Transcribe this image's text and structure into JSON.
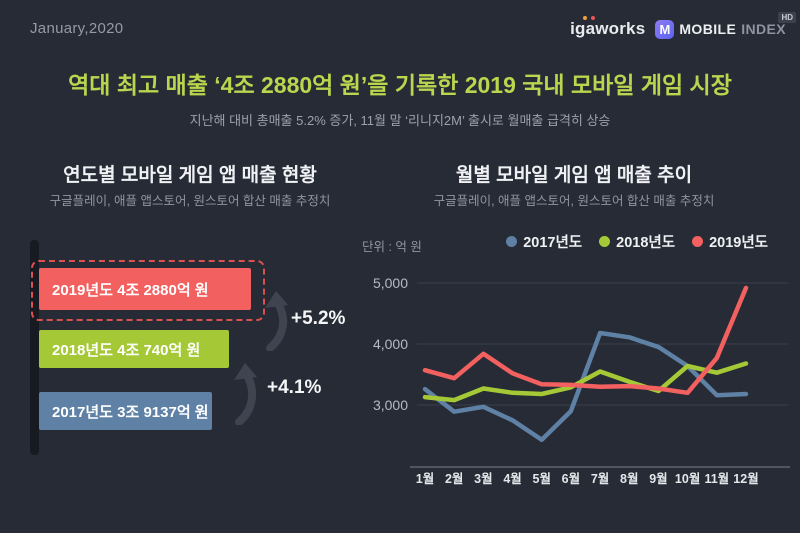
{
  "header": {
    "date": "January,2020",
    "brand": {
      "igaworks": "igaworks",
      "m": "M",
      "mobile": "MOBILE",
      "index": "INDEX",
      "hd": "HD"
    }
  },
  "title": "역대 최고 매출 ‘4조 2880억 원’을 기록한 2019 국내 모바일 게임 시장",
  "subtitle": "지난해 대비 총매출 5.2% 증가, 11월 말 ‘리니지2M’ 출시로 월매출 급격히 상승",
  "colors": {
    "background": "#272b35",
    "title_accent": "#b9d64f",
    "year_2017": "#5e81a5",
    "year_2018": "#a5c936",
    "year_2019": "#f2605f",
    "grid": "#3a404c",
    "axis": "#78808c"
  },
  "chart_data": [
    {
      "type": "bar",
      "title": "연도별 모바일 게임 앱 매출 현황",
      "subtitle": "구글플레이, 애플 앱스토어, 원스토어 합산 매출 추정치",
      "unit": "억 원",
      "categories": [
        "2019년도",
        "2018년도",
        "2017년도"
      ],
      "values": [
        42880,
        40740,
        39137
      ],
      "bar_labels": [
        "2019년도 4조 2880억 원",
        "2018년도 4조 740억 원",
        "2017년도 3조 9137억 원"
      ],
      "colors": [
        "#f2605f",
        "#a5c936",
        "#5e81a5"
      ],
      "growth_labels": [
        "+5.2%",
        "+4.1%"
      ],
      "highlighted_category": "2019년도"
    },
    {
      "type": "line",
      "title": "월별 모바일 게임 앱 매출 추이",
      "subtitle": "구글플레이, 애플 앱스토어, 원스토어 합산 매출 추정치",
      "ylabel_display": "단위 : 억 원",
      "x": [
        "1월",
        "2월",
        "3월",
        "4월",
        "5월",
        "6월",
        "7월",
        "8월",
        "9월",
        "10월",
        "11월",
        "12월"
      ],
      "yticks_labels": [
        "5,000",
        "4,000",
        "3,000"
      ],
      "yticks_values": [
        5000,
        4000,
        3000
      ],
      "ylim": [
        2300,
        5100
      ],
      "grid": true,
      "legend_position": "top-right",
      "series": [
        {
          "name": "2017년도",
          "color": "#5e81a5",
          "values": [
            3260,
            2890,
            2970,
            2750,
            2430,
            2900,
            4180,
            4110,
            3950,
            3640,
            3160,
            3180
          ]
        },
        {
          "name": "2018년도",
          "color": "#a5c936",
          "values": [
            3130,
            3080,
            3270,
            3200,
            3180,
            3290,
            3550,
            3380,
            3230,
            3640,
            3530,
            3680
          ]
        },
        {
          "name": "2019년도",
          "color": "#f2605f",
          "values": [
            3570,
            3440,
            3840,
            3520,
            3340,
            3330,
            3300,
            3310,
            3270,
            3200,
            3770,
            4920
          ]
        }
      ]
    }
  ]
}
